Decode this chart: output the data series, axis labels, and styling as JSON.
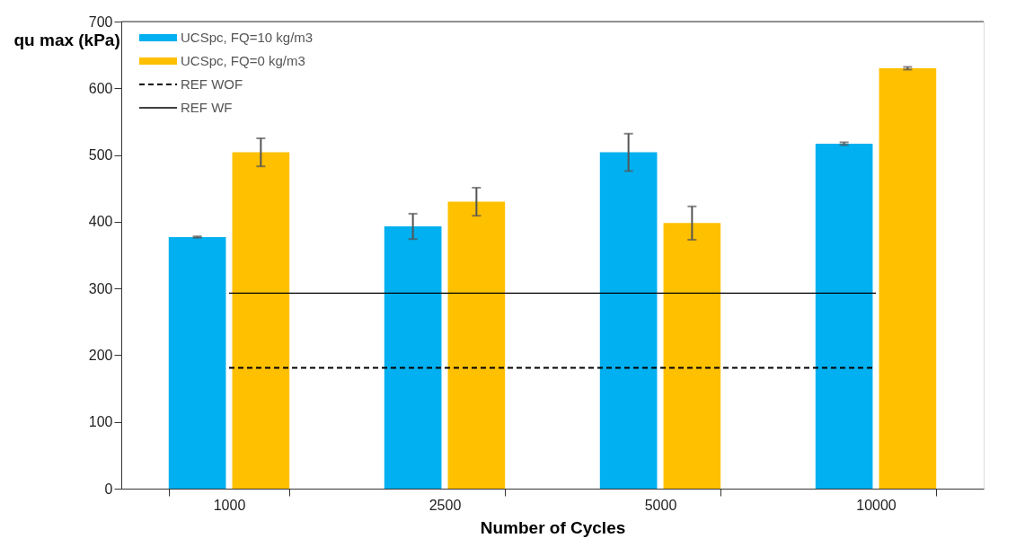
{
  "chart_data": {
    "type": "bar",
    "xlabel": "Number of Cycles",
    "ylabel": "qu max (kPa)",
    "categories": [
      "1000",
      "2500",
      "5000",
      "10000"
    ],
    "series": [
      {
        "name": "UCSpc, FQ=10 kg/m3",
        "color": "#00b0f0",
        "values": [
          377,
          393,
          504,
          517
        ],
        "errors": [
          1,
          19,
          28,
          2
        ]
      },
      {
        "name": "UCSpc, FQ=0 kg/m3",
        "color": "#ffc000",
        "values": [
          504,
          430,
          398,
          630
        ],
        "errors": [
          21,
          21,
          25,
          2
        ]
      }
    ],
    "ref_lines": [
      {
        "axis": "y",
        "value": 181,
        "label": "REF WOF",
        "color": "#000000",
        "line_style": "dashed"
      },
      {
        "axis": "y",
        "value": 293,
        "label": "REF WF",
        "color": "#000000",
        "line_style": "solid"
      }
    ],
    "ylim": [
      0,
      700
    ],
    "yticks": [
      0,
      100,
      200,
      300,
      400,
      500,
      600,
      700
    ],
    "grid": false,
    "legend": "top left"
  }
}
